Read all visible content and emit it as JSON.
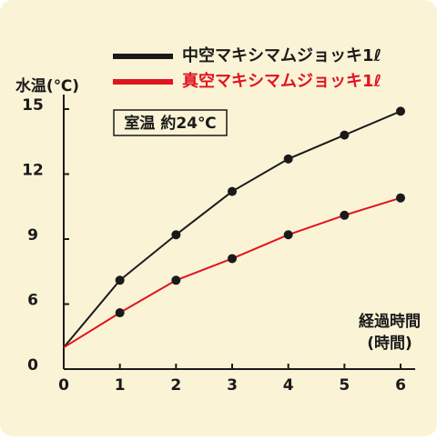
{
  "chart_data": {
    "type": "line",
    "ylabel": "水温(℃)",
    "xlabel": [
      "経過時間",
      "(時間)"
    ],
    "annotation": "室温 約24℃",
    "x": [
      0,
      1,
      2,
      3,
      4,
      5,
      6
    ],
    "series": [
      {
        "name": "中空マキシマムジョッキ1ℓ",
        "color": "#1a1a1a",
        "values": [
          2.0,
          7.1,
          9.2,
          11.2,
          12.7,
          13.8,
          14.9
        ]
      },
      {
        "name": "真空マキシマムジョッキ1ℓ",
        "color": "#e0141e",
        "values": [
          2.0,
          5.2,
          7.1,
          8.1,
          9.2,
          10.1,
          10.9
        ]
      }
    ],
    "xlim": [
      0,
      6
    ],
    "xticks": [
      0,
      1,
      2,
      3,
      4,
      5,
      6
    ],
    "ylim": [
      0,
      15
    ],
    "yticks": [
      0,
      6,
      9,
      12,
      15
    ],
    "axis_break": [
      0,
      6
    ]
  }
}
